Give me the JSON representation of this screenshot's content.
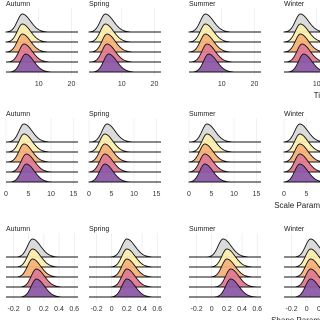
{
  "chart_data": [
    {
      "type": "ridgeline",
      "axis_label": "Ti",
      "xlim": [
        0,
        22
      ],
      "xticks": [
        10,
        20
      ],
      "grid": true,
      "colors": [
        "#d9d9d9",
        "#fbeeb0",
        "#f6b27a",
        "#e07b91",
        "#8e5aa6"
      ],
      "panels": [
        {
          "title": "Autumn",
          "peaks": [
            5,
            5,
            5,
            5.5,
            6
          ]
        },
        {
          "title": "Spring",
          "peaks": [
            5,
            5,
            5.5,
            5.5,
            6
          ]
        },
        {
          "title": "Summer",
          "peaks": [
            5,
            5,
            5,
            5.5,
            6
          ]
        },
        {
          "title": "Winter",
          "peaks": [
            5,
            5,
            5,
            5.5,
            6
          ]
        }
      ]
    },
    {
      "type": "ridgeline",
      "axis_label": "Scale Param",
      "xlim": [
        0,
        16
      ],
      "xticks": [
        0,
        5,
        10,
        15
      ],
      "grid": true,
      "colors": [
        "#d9d9d9",
        "#fbeeb0",
        "#f6b27a",
        "#e07b91",
        "#8e5aa6"
      ],
      "panels": [
        {
          "title": "Autumn",
          "peaks": [
            4,
            4,
            4,
            4.5,
            4.5
          ]
        },
        {
          "title": "Spring",
          "peaks": [
            4,
            3.5,
            3.5,
            3.5,
            3.5
          ]
        },
        {
          "title": "Summer",
          "peaks": [
            4,
            4,
            3.5,
            3.5,
            3.5
          ]
        },
        {
          "title": "Winter",
          "peaks": [
            3.5,
            3.5,
            3.5,
            3.5,
            3.5
          ]
        }
      ]
    },
    {
      "type": "ridgeline",
      "axis_label": "Shape Param",
      "xlim": [
        -0.3,
        0.65
      ],
      "xticks": [
        -0.2,
        0.0,
        0.2,
        0.4,
        0.6
      ],
      "grid": true,
      "colors": [
        "#d9d9d9",
        "#fbeeb0",
        "#f6b27a",
        "#e07b91",
        "#8e5aa6"
      ],
      "panels": [
        {
          "title": "Autumn",
          "peaks": [
            0.05,
            0.05,
            0.05,
            0.1,
            0.1
          ]
        },
        {
          "title": "Spring",
          "peaks": [
            0.2,
            0.2,
            0.2,
            0.2,
            0.2
          ]
        },
        {
          "title": "Summer",
          "peaks": [
            0.15,
            0.2,
            0.2,
            0.25,
            0.25
          ]
        },
        {
          "title": "Winter",
          "peaks": [
            0.05,
            0.05,
            0.05,
            0.05,
            0.05
          ]
        }
      ]
    }
  ]
}
